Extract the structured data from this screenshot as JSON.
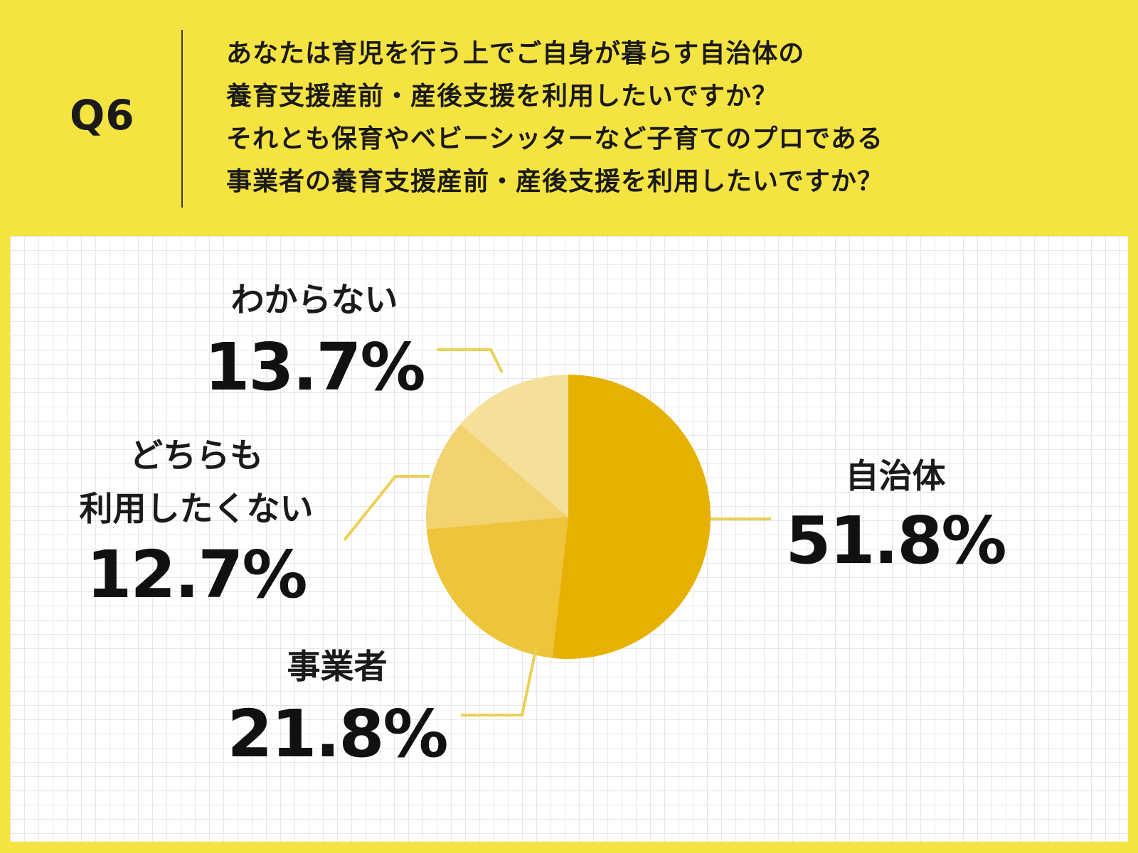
{
  "question": {
    "label": "Q6",
    "lines": [
      "あなたは育児を行う上でご自身が暮らす自治体の",
      "養育支援産前・産後支援を利用したいですか？",
      "それとも保育やベビーシッターなど子育てのプロである",
      "事業者の養育支援産前・産後支援を利用したいですか？"
    ]
  },
  "colors": {
    "background": "#f5e342",
    "leader_line": "#ecd055"
  },
  "chart_data": {
    "type": "pie",
    "start_angle_deg": 0,
    "direction": "clockwise",
    "slices": [
      {
        "label": "自治体",
        "label_lines": [
          "自治体"
        ],
        "value": 51.8,
        "display": "51.8%",
        "color": "#e6b100"
      },
      {
        "label": "事業者",
        "label_lines": [
          "事業者"
        ],
        "value": 21.8,
        "display": "21.8%",
        "color": "#edc43a"
      },
      {
        "label": "どちらも利用したくない",
        "label_lines": [
          "どちらも",
          "利用したくない"
        ],
        "value": 12.7,
        "display": "12.7%",
        "color": "#f2d36f"
      },
      {
        "label": "わからない",
        "label_lines": [
          "わからない"
        ],
        "value": 13.7,
        "display": "13.7%",
        "color": "#f5e09a"
      }
    ]
  }
}
